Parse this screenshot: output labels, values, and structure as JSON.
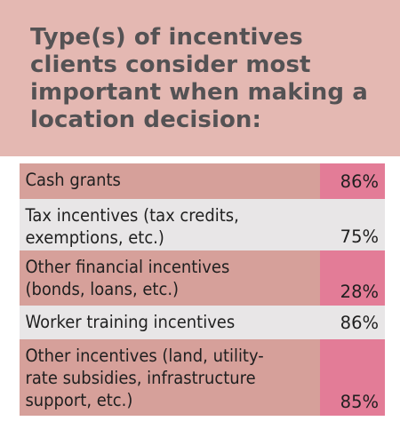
{
  "title": "Type(s) of incentives clients consider most important when making a location decision:",
  "colors": {
    "header_bg": "#e4b8b2",
    "row_shaded": "#d6a09a",
    "value_shaded": "#e37c97",
    "row_plain": "#e8e6e7",
    "title_text": "#545254"
  },
  "chart_data": {
    "type": "table",
    "title": "Type(s) of incentives clients consider most important when making a location decision:",
    "rows": [
      {
        "label_lines": [
          "Cash grants"
        ],
        "value": "86%"
      },
      {
        "label_lines": [
          "Tax incentives (tax credits,",
          "exemptions, etc.)"
        ],
        "value": "75%"
      },
      {
        "label_lines": [
          "Other financial incentives",
          "(bonds, loans, etc.)"
        ],
        "value": "28%"
      },
      {
        "label_lines": [
          "Worker training incentives"
        ],
        "value": "86%"
      },
      {
        "label_lines": [
          "Other incentives (land, utility-",
          "rate subsidies, infrastructure",
          "support, etc.)"
        ],
        "value": "85%"
      }
    ]
  }
}
